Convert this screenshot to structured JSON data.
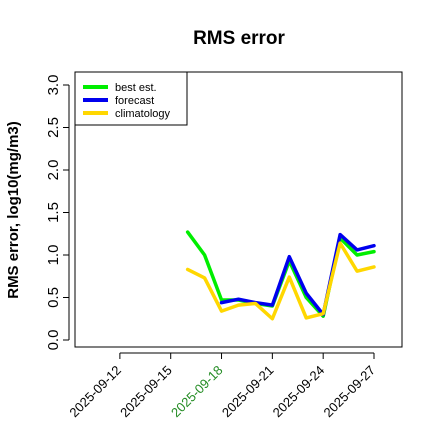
{
  "chart_data": {
    "type": "line",
    "title": "RMS error",
    "xlabel": "",
    "ylabel": "RMS error, log10(mg/m3)",
    "ylim": [
      0,
      3.1
    ],
    "xlim": [
      "2025-09-10",
      "2025-09-27"
    ],
    "y_ticks": [
      "0.0",
      "0.5",
      "1.0",
      "1.5",
      "2.0",
      "2.5",
      "3.0"
    ],
    "x_ticks": [
      {
        "date": "2025-09-12",
        "color": "#000000"
      },
      {
        "date": "2025-09-15",
        "color": "#000000"
      },
      {
        "date": "2025-09-18",
        "color": "#228B22"
      },
      {
        "date": "2025-09-21",
        "color": "#000000"
      },
      {
        "date": "2025-09-24",
        "color": "#000000"
      },
      {
        "date": "2025-09-27",
        "color": "#000000"
      }
    ],
    "legend_position": "top-left",
    "x": [
      "2025-09-16",
      "2025-09-17",
      "2025-09-18",
      "2025-09-19",
      "2025-09-20",
      "2025-09-21",
      "2025-09-22",
      "2025-09-23",
      "2025-09-24",
      "2025-09-25",
      "2025-09-26",
      "2025-09-27"
    ],
    "series": [
      {
        "name": "best est.",
        "color": "#00ee00",
        "values": [
          1.27,
          1.0,
          0.47,
          0.47,
          0.43,
          0.4,
          0.93,
          0.5,
          0.28,
          1.2,
          1.0,
          1.04
        ]
      },
      {
        "name": "forecast",
        "color": "#0000ee",
        "values": [
          null,
          null,
          0.44,
          0.48,
          0.44,
          0.41,
          0.98,
          0.55,
          0.3,
          1.24,
          1.06,
          1.11
        ]
      },
      {
        "name": "climatology",
        "color": "#ffd700",
        "values": [
          0.83,
          0.73,
          0.34,
          0.41,
          0.43,
          0.25,
          0.74,
          0.26,
          0.31,
          1.14,
          0.81,
          0.86
        ]
      }
    ]
  }
}
